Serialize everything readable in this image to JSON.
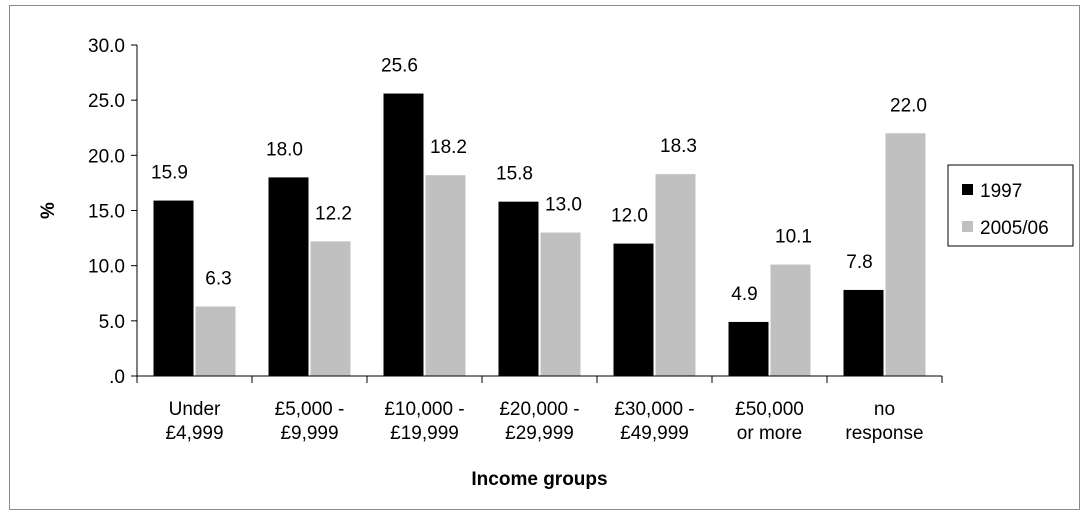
{
  "chart_data": {
    "type": "bar",
    "xlabel": "Income groups",
    "ylabel": "%",
    "ylim": [
      0,
      30
    ],
    "ytick_step": 5,
    "ytick_labels": [
      ".0",
      "5.0",
      "10.0",
      "15.0",
      "20.0",
      "25.0",
      "30.0"
    ],
    "categories": [
      [
        "Under",
        "£4,999"
      ],
      [
        "£5,000 -",
        "£9,999"
      ],
      [
        "£10,000 -",
        "£19,999"
      ],
      [
        "£20,000 -",
        "£29,999"
      ],
      [
        "£30,000 -",
        "£49,999"
      ],
      [
        "£50,000",
        "or more"
      ],
      [
        "no",
        "response"
      ]
    ],
    "series": [
      {
        "name": "1997",
        "color": "#000000",
        "values": [
          15.9,
          18.0,
          25.6,
          15.8,
          12.0,
          4.9,
          7.8
        ],
        "labels": [
          "15.9",
          "18.0",
          "25.6",
          "15.8",
          "12.0",
          "4.9",
          "7.8"
        ]
      },
      {
        "name": "2005/06",
        "color": "#c0c0c0",
        "values": [
          6.3,
          12.2,
          18.2,
          13.0,
          18.3,
          10.1,
          22.0
        ],
        "labels": [
          "6.3",
          "12.2",
          "18.2",
          "13.0",
          "18.3",
          "10.1",
          "22.0"
        ]
      }
    ],
    "grid": false,
    "legend": "right"
  }
}
